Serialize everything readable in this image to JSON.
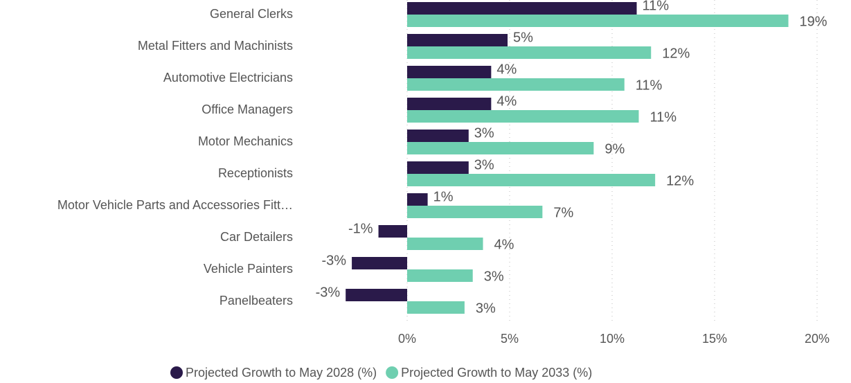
{
  "chart_data": {
    "type": "bar",
    "orientation": "horizontal",
    "categories": [
      "General Clerks",
      "Metal Fitters and Machinists",
      "Automotive Electricians",
      "Office Managers",
      "Motor Mechanics",
      "Receptionists",
      "Motor Vehicle Parts and Accessories Fitt…",
      "Car Detailers",
      "Vehicle Painters",
      "Panelbeaters"
    ],
    "series": [
      {
        "name": "Projected Growth to May 2028 (%)",
        "color": "#2a1a4a",
        "values": [
          11.2,
          4.9,
          4.1,
          4.1,
          3.0,
          3.0,
          1.0,
          -1.4,
          -2.7,
          -3.0
        ],
        "value_labels": [
          "11%",
          "5%",
          "4%",
          "4%",
          "3%",
          "3%",
          "1%",
          "-1%",
          "-3%",
          "-3%"
        ]
      },
      {
        "name": "Projected Growth to May 2033 (%)",
        "color": "#6fcfb0",
        "values": [
          18.6,
          11.9,
          10.6,
          11.3,
          9.1,
          12.1,
          6.6,
          3.7,
          3.2,
          2.8
        ],
        "value_labels": [
          "19%",
          "12%",
          "11%",
          "11%",
          "9%",
          "12%",
          "7%",
          "4%",
          "3%",
          "3%"
        ]
      }
    ],
    "xlim": [
      -5,
      20
    ],
    "xticks": [
      {
        "value": 0,
        "label": "0%"
      },
      {
        "value": 5,
        "label": "5%"
      },
      {
        "value": 10,
        "label": "10%"
      },
      {
        "value": 15,
        "label": "15%"
      },
      {
        "value": 20,
        "label": "20%"
      }
    ],
    "grid": true,
    "legend": "bottom"
  }
}
